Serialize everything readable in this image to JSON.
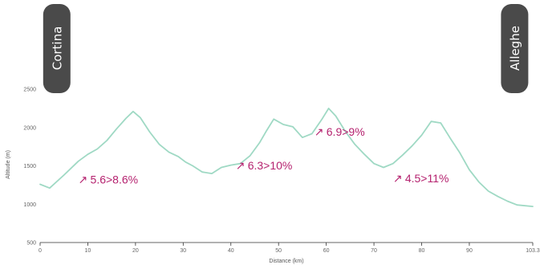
{
  "chart_data": {
    "type": "line",
    "title": "",
    "xlabel": "Distance (km)",
    "ylabel": "Altitude (m)",
    "xlim": [
      0,
      103.3
    ],
    "ylim": [
      500,
      2700
    ],
    "x_ticks": [
      "0",
      "10",
      "20",
      "30",
      "40",
      "50",
      "60",
      "70",
      "80",
      "90",
      "103.3"
    ],
    "y_ticks": [
      "500",
      "1000",
      "1500",
      "2000",
      "2500"
    ],
    "grid": false,
    "line_color": "#9fd9c4",
    "series": [
      {
        "x": [
          0,
          2,
          5,
          8,
          10,
          12,
          14,
          16,
          18,
          19.5,
          21,
          23,
          25,
          27,
          29,
          30.5,
          32,
          34,
          36,
          38,
          40,
          42,
          44,
          46,
          47.5,
          49,
          51,
          53,
          55,
          57,
          59,
          60.5,
          62,
          64,
          66,
          68,
          70,
          72,
          74,
          76,
          78,
          80,
          82,
          84,
          86,
          88,
          90,
          92,
          94,
          96,
          98,
          100,
          103.3
        ],
        "y": [
          1260,
          1210,
          1380,
          1560,
          1650,
          1720,
          1830,
          1980,
          2120,
          2210,
          2130,
          1940,
          1780,
          1680,
          1620,
          1550,
          1500,
          1420,
          1400,
          1480,
          1510,
          1530,
          1630,
          1800,
          1960,
          2110,
          2040,
          2010,
          1870,
          1920,
          2100,
          2250,
          2150,
          1950,
          1780,
          1650,
          1530,
          1480,
          1530,
          1640,
          1760,
          1900,
          2080,
          2060,
          1860,
          1670,
          1450,
          1290,
          1170,
          1100,
          1040,
          990,
          970
        ]
      }
    ],
    "annotations": [
      {
        "text": "5.6>8.6%",
        "x": 8,
        "y": 1270
      },
      {
        "text": "6.3>10%",
        "x": 41,
        "y": 1455
      },
      {
        "text": "6.9>9%",
        "x": 57.5,
        "y": 1895
      },
      {
        "text": "4.5>11%",
        "x": 74,
        "y": 1285
      }
    ],
    "arrow_glyph": "↗",
    "markers": [
      {
        "label": "Cortina",
        "x": 3.5
      },
      {
        "label": "Alleghe",
        "x": 99.5
      }
    ],
    "accent_color": "#b5226f",
    "badge_color": "#4a4a4a"
  }
}
